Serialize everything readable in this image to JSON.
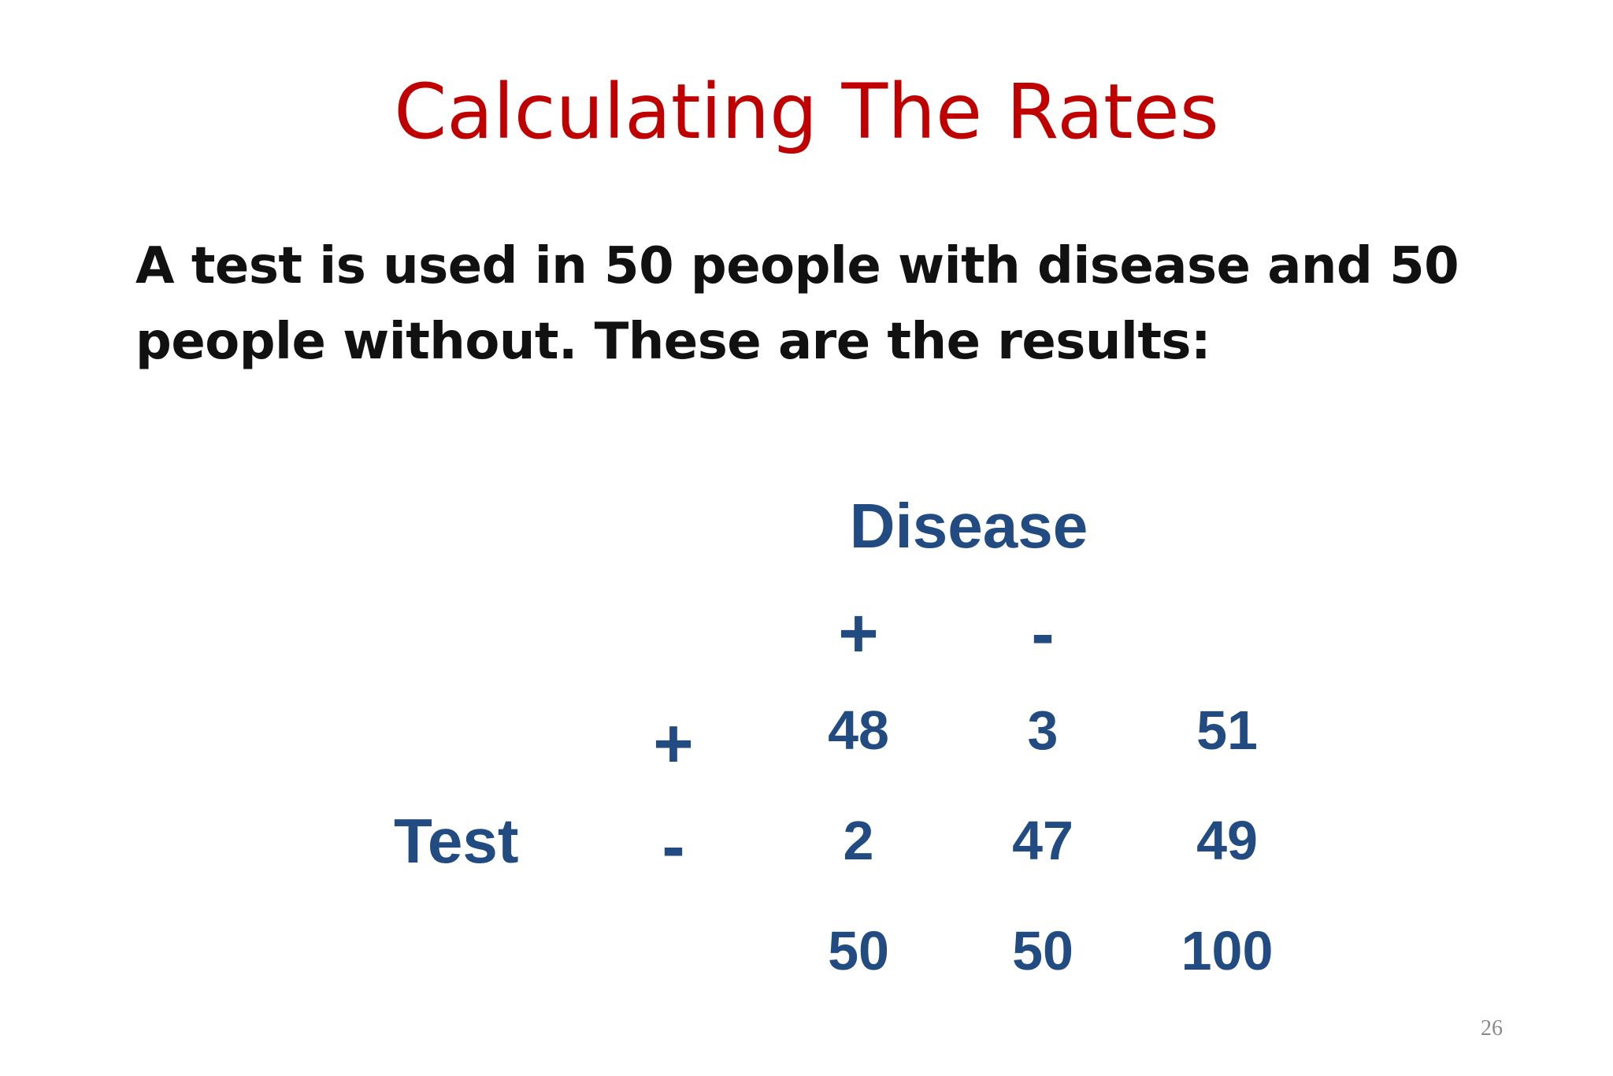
{
  "slide": {
    "title": "Calculating The Rates",
    "intro": "A test is used in 50 people with disease and 50 people without.  These are the results:",
    "page_number": "26"
  },
  "table": {
    "column_header": "Disease",
    "row_header": "Test",
    "disease_signs": [
      "+",
      "-"
    ],
    "test_signs": [
      "+",
      "-"
    ],
    "rows": [
      [
        "48",
        "3",
        "51"
      ],
      [
        "2",
        "47",
        "49"
      ],
      [
        "50",
        "50",
        "100"
      ]
    ]
  }
}
